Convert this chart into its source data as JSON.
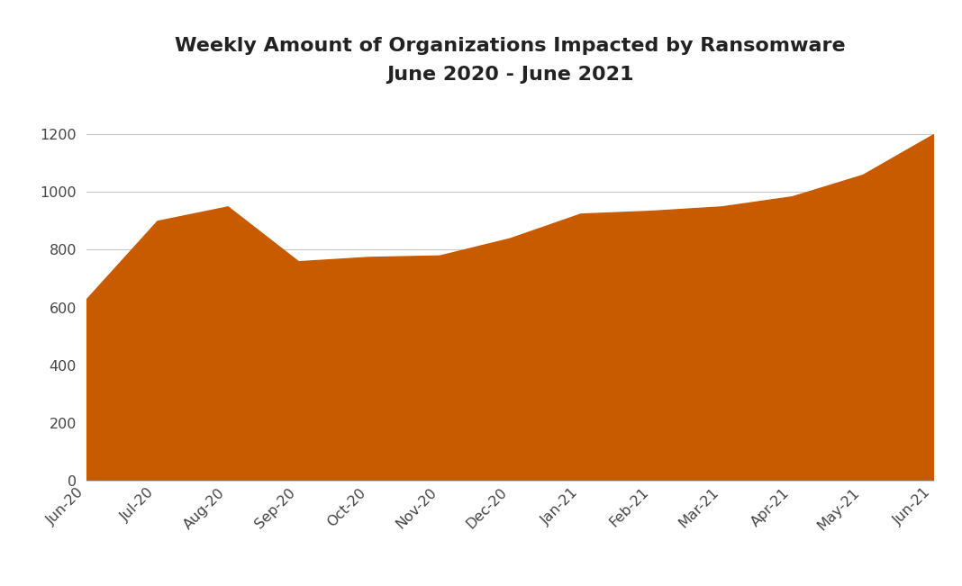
{
  "title_line1": "Weekly Amount of Organizations Impacted by Ransomware",
  "title_line2": "June 2020 - June 2021",
  "x_labels": [
    "Jun-20",
    "Jul-20",
    "Aug-20",
    "Sep-20",
    "Oct-20",
    "Nov-20",
    "Dec-20",
    "Jan-21",
    "Feb-21",
    "Mar-21",
    "Apr-21",
    "May-21",
    "Jun-21"
  ],
  "y_values": [
    630,
    900,
    950,
    760,
    775,
    780,
    840,
    925,
    935,
    950,
    985,
    1060,
    1200
  ],
  "fill_color": "#C85A00",
  "line_color": "#C85A00",
  "background_color": "#FFFFFF",
  "grid_color": "#C8C8C8",
  "ylim": [
    0,
    1300
  ],
  "yticks": [
    0,
    200,
    400,
    600,
    800,
    1000,
    1200
  ],
  "title_fontsize": 16,
  "tick_fontsize": 11.5,
  "fig_width": 10.68,
  "fig_height": 6.51
}
